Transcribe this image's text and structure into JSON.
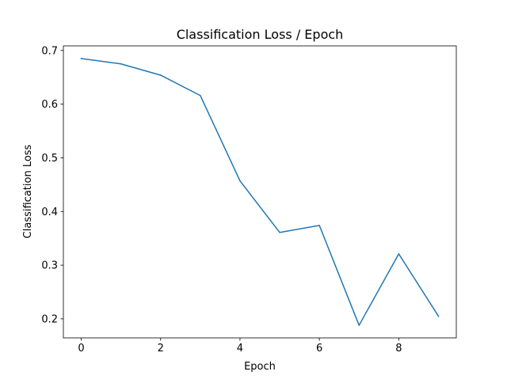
{
  "chart_data": {
    "type": "line",
    "title": "Classification Loss / Epoch",
    "xlabel": "Epoch",
    "ylabel": "Classification Loss",
    "xlim": [
      -0.45,
      9.45
    ],
    "ylim": [
      0.1645,
      0.7085
    ],
    "x_ticks": [
      "0",
      "2",
      "4",
      "6",
      "8"
    ],
    "x_tick_values": [
      0,
      2,
      4,
      6,
      8
    ],
    "y_ticks": [
      "0.2",
      "0.3",
      "0.4",
      "0.5",
      "0.6",
      "0.7"
    ],
    "y_tick_values": [
      0.2,
      0.3,
      0.4,
      0.5,
      0.6,
      0.7
    ],
    "grid": false,
    "legend": "none",
    "series": [
      {
        "color": "#1f77b4",
        "x": [
          0,
          1,
          2,
          3,
          4,
          5,
          6,
          7,
          8,
          9
        ],
        "y": [
          0.685,
          0.675,
          0.654,
          0.616,
          0.457,
          0.361,
          0.374,
          0.188,
          0.321,
          0.205
        ]
      }
    ]
  }
}
